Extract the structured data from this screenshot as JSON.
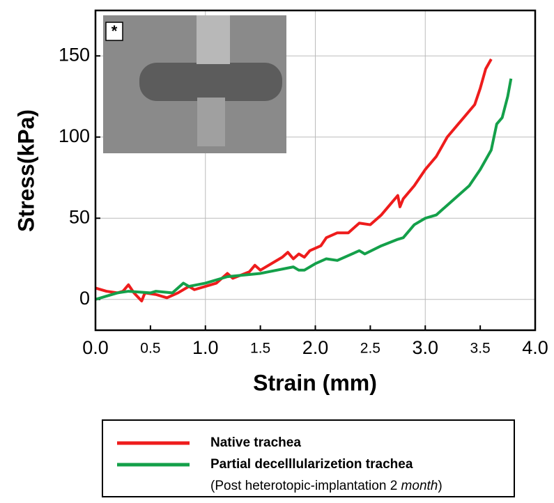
{
  "chart_data": {
    "type": "line",
    "xlabel": "Strain (mm)",
    "ylabel": "Stress(kPa)",
    "inset_label": "*",
    "xlim": [
      0,
      4
    ],
    "ylim": [
      -19,
      178
    ],
    "xticks": [
      {
        "value": 0,
        "label": "0.0"
      },
      0.5,
      {
        "value": 1,
        "label": "1.0"
      },
      1.5,
      {
        "value": 2,
        "label": "2.0"
      },
      2.5,
      {
        "value": 3,
        "label": "3.0"
      },
      3.5,
      {
        "value": 4,
        "label": "4.0"
      }
    ],
    "yticks": [
      0,
      50,
      100,
      150
    ],
    "grid": true,
    "series": [
      {
        "name": "Native trachea",
        "color": "#ee1c1c",
        "x": [
          0,
          0.1,
          0.2,
          0.25,
          0.3,
          0.35,
          0.42,
          0.45,
          0.55,
          0.65,
          0.75,
          0.85,
          0.9,
          1.0,
          1.1,
          1.2,
          1.25,
          1.4,
          1.45,
          1.5,
          1.7,
          1.75,
          1.8,
          1.85,
          1.9,
          1.95,
          2.05,
          2.1,
          2.2,
          2.3,
          2.4,
          2.5,
          2.6,
          2.7,
          2.75,
          2.77,
          2.8,
          2.9,
          3.0,
          3.05,
          3.1,
          3.2,
          3.3,
          3.35,
          3.45,
          3.5,
          3.55,
          3.6
        ],
        "values": [
          7,
          5,
          4,
          5,
          9,
          4,
          -1,
          4,
          3,
          1,
          4,
          8,
          6,
          8,
          10,
          16,
          13,
          17,
          21,
          18,
          26,
          29,
          25,
          28,
          26,
          30,
          33,
          38,
          41,
          41,
          47,
          46,
          52,
          60,
          64,
          57,
          62,
          70,
          80,
          84,
          88,
          100,
          108,
          112,
          120,
          130,
          142,
          148
        ]
      },
      {
        "name": "Partial decelllularizetion trachea",
        "color": "#14a04a",
        "x": [
          0,
          0.1,
          0.2,
          0.3,
          0.5,
          0.55,
          0.7,
          0.8,
          0.85,
          1.0,
          1.2,
          1.5,
          1.8,
          1.85,
          1.9,
          2.0,
          2.1,
          2.2,
          2.4,
          2.45,
          2.6,
          2.75,
          2.8,
          2.9,
          3.0,
          3.1,
          3.2,
          3.3,
          3.4,
          3.5,
          3.55,
          3.6,
          3.65,
          3.7,
          3.75,
          3.78
        ],
        "values": [
          0,
          2,
          4,
          5,
          4,
          5,
          4,
          10,
          8,
          10,
          14,
          16,
          20,
          18,
          18,
          22,
          25,
          24,
          30,
          28,
          33,
          37,
          38,
          46,
          50,
          52,
          58,
          64,
          70,
          80,
          86,
          92,
          108,
          112,
          125,
          136
        ]
      }
    ],
    "legend_note": [
      "(Post heterotopic-implantation 2 ",
      "month",
      ")"
    ]
  }
}
